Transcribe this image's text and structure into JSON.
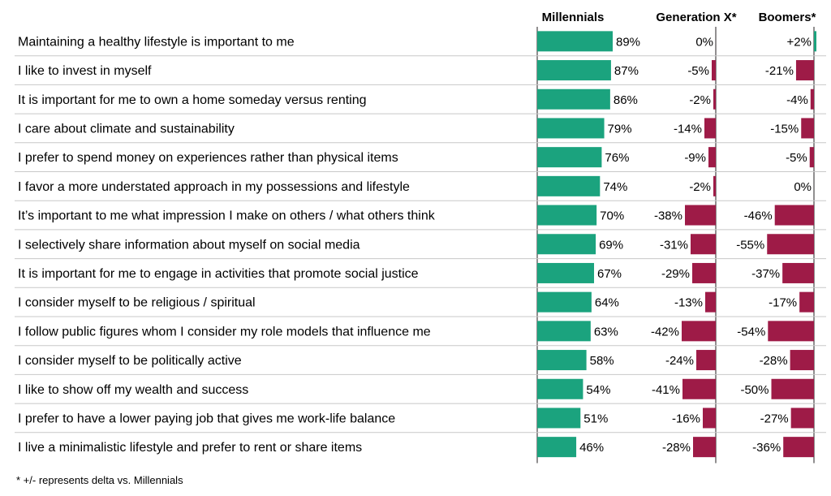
{
  "chart_data": {
    "type": "bar",
    "orientation": "horizontal",
    "columns": [
      "Millennials",
      "Generation X*",
      "Boomers*"
    ],
    "categories": [
      "Maintaining a healthy lifestyle is important to me",
      "I like to invest in myself",
      "It is important for me to own a home someday versus renting",
      "I care about climate and sustainability",
      "I prefer to spend money on experiences rather than physical items",
      "I favor a more understated approach in my possessions and lifestyle",
      "It’s important to me what impression I make on others / what others think",
      "I selectively share information about myself on social media",
      "It is important for me to engage in activities that promote social justice",
      "I consider myself to be religious / spiritual",
      "I follow public figures whom I consider my role models that influence me",
      "I consider myself to be politically active",
      "I like to show off my wealth and success",
      "I prefer to have a lower paying job that gives me work-life balance",
      "I live a minimalistic lifestyle and prefer to rent or share items"
    ],
    "series": [
      {
        "name": "Millennials",
        "values": [
          89,
          87,
          86,
          79,
          76,
          74,
          70,
          69,
          67,
          64,
          63,
          58,
          54,
          51,
          46
        ]
      },
      {
        "name": "Generation X*",
        "values": [
          0,
          -5,
          -2,
          -14,
          -9,
          -2,
          -38,
          -31,
          -29,
          -13,
          -42,
          -24,
          -41,
          -16,
          -28
        ]
      },
      {
        "name": "Boomers*",
        "values": [
          2,
          -21,
          -4,
          -15,
          -5,
          0,
          -46,
          -55,
          -37,
          -17,
          -54,
          -28,
          -50,
          -27,
          -36
        ]
      }
    ],
    "labels": {
      "Millennials": [
        "89%",
        "87%",
        "86%",
        "79%",
        "76%",
        "74%",
        "70%",
        "69%",
        "67%",
        "64%",
        "63%",
        "58%",
        "54%",
        "51%",
        "46%"
      ],
      "Generation X*": [
        "0%",
        "-5%",
        "-2%",
        "-14%",
        "-9%",
        "-2%",
        "-38%",
        "-31%",
        "-29%",
        "-13%",
        "-42%",
        "-24%",
        "-41%",
        "-16%",
        "-28%"
      ],
      "Boomers*": [
        "+2%",
        "-21%",
        "-4%",
        "-15%",
        "-5%",
        "0%",
        "-46%",
        "-55%",
        "-37%",
        "-17%",
        "-54%",
        "-28%",
        "-50%",
        "-27%",
        "-36%"
      ]
    },
    "colors": {
      "millennials": "#1ba37e",
      "generation_x": "#9e1b47",
      "boomers": "#9e1b47"
    },
    "footnote": "* +/- represents delta vs. Millennials"
  }
}
